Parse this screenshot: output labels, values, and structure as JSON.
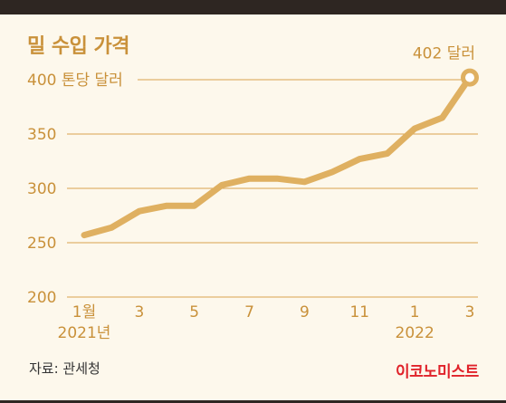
{
  "title": "밀 수입 가격",
  "source": "자료: 관세청",
  "brand": "이코노미스트",
  "colors": {
    "accent": "#c9913a",
    "line": "#dfb061",
    "grid": "#d9a24e",
    "background": "#fdf8ec",
    "brand": "#e0222a",
    "frame": "#2e2622"
  },
  "chart_data": {
    "type": "line",
    "x": [
      "2021-01",
      "2021-02",
      "2021-03",
      "2021-04",
      "2021-05",
      "2021-06",
      "2021-07",
      "2021-08",
      "2021-09",
      "2021-10",
      "2021-11",
      "2021-12",
      "2022-01",
      "2022-02",
      "2022-03"
    ],
    "series": [
      {
        "values": [
          257,
          264,
          279,
          284,
          284,
          303,
          309,
          309,
          306,
          315,
          327,
          332,
          355,
          365,
          402
        ]
      }
    ],
    "ylim": [
      200,
      400
    ],
    "y_ticks": [
      {
        "value": 200,
        "label": "200"
      },
      {
        "value": 250,
        "label": "250"
      },
      {
        "value": 300,
        "label": "300"
      },
      {
        "value": 350,
        "label": "350"
      },
      {
        "value": 400,
        "label": "400 톤당 달러"
      }
    ],
    "x_ticks": [
      {
        "index": 0,
        "label": "1월",
        "sublabel": "2021년"
      },
      {
        "index": 2,
        "label": "3",
        "sublabel": ""
      },
      {
        "index": 4,
        "label": "5",
        "sublabel": ""
      },
      {
        "index": 6,
        "label": "7",
        "sublabel": ""
      },
      {
        "index": 8,
        "label": "9",
        "sublabel": ""
      },
      {
        "index": 10,
        "label": "11",
        "sublabel": ""
      },
      {
        "index": 12,
        "label": "1",
        "sublabel": "2022"
      },
      {
        "index": 14,
        "label": "3",
        "sublabel": ""
      }
    ],
    "annotation": {
      "index": 14,
      "label": "402 달러"
    },
    "grid": true
  }
}
